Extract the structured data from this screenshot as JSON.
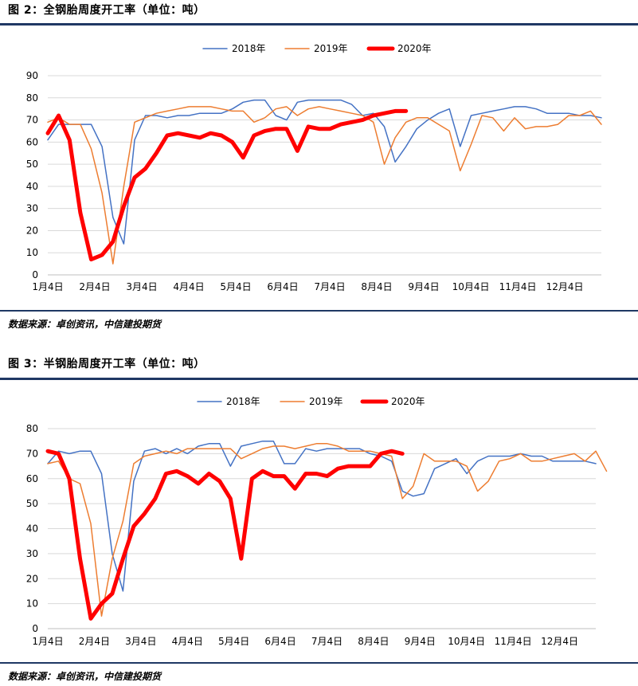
{
  "figures": [
    {
      "title": "图 2：全钢胎周度开工率（单位：吨）",
      "source": "数据来源：卓创资讯，中信建投期货",
      "chart_data": {
        "type": "line",
        "x_tick_labels": [
          "1月4日",
          "2月4日",
          "3月4日",
          "4月4日",
          "5月4日",
          "6月4日",
          "7月4日",
          "8月4日",
          "9月4日",
          "10月4日",
          "11月4日",
          "12月4日"
        ],
        "ylim": [
          0,
          90
        ],
        "y_ticks": [
          0,
          10,
          20,
          30,
          40,
          50,
          60,
          70,
          80,
          90
        ],
        "grid": true,
        "legend_position": "top",
        "series": [
          {
            "name": "2018年",
            "color": "#4472c4",
            "values": [
              61,
              68,
              68,
              68,
              68,
              58,
              26,
              14,
              61,
              72,
              72,
              71,
              72,
              72,
              73,
              73,
              73,
              75,
              78,
              79,
              79,
              72,
              70,
              78,
              79,
              79,
              79,
              79,
              77,
              72,
              73,
              67,
              51,
              58,
              66,
              70,
              73,
              75,
              58,
              72,
              73,
              74,
              75,
              76,
              76,
              75,
              73,
              73,
              73,
              72,
              72,
              71
            ]
          },
          {
            "name": "2019年",
            "color": "#ed7d31",
            "values": [
              69,
              71,
              68,
              68,
              57,
              37,
              5,
              40,
              69,
              71,
              73,
              74,
              75,
              76,
              76,
              76,
              75,
              74,
              74,
              69,
              71,
              75,
              76,
              72,
              75,
              76,
              75,
              74,
              73,
              72,
              69,
              50,
              62,
              69,
              71,
              71,
              68,
              65,
              47,
              59,
              72,
              71,
              65,
              71,
              66,
              67,
              67,
              68,
              72,
              72,
              74,
              68
            ]
          },
          {
            "name": "2020年",
            "color": "#ff0000",
            "values": [
              64,
              72,
              61,
              28,
              7,
              9,
              15,
              31,
              44,
              48,
              55,
              63,
              64,
              63,
              62,
              64,
              63,
              60,
              53,
              63,
              65,
              66,
              66,
              56,
              67,
              66,
              66,
              68,
              69,
              70,
              72,
              73,
              74,
              74
            ]
          }
        ]
      }
    },
    {
      "title": "图 3：半钢胎周度开工率（单位：吨）",
      "source": "数据来源：卓创资讯，中信建投期货",
      "chart_data": {
        "type": "line",
        "x_tick_labels": [
          "1月4日",
          "2月4日",
          "3月4日",
          "4月4日",
          "5月4日",
          "6月4日",
          "7月4日",
          "8月4日",
          "9月4日",
          "10月4日",
          "11月4日",
          "12月4日"
        ],
        "ylim": [
          0,
          80
        ],
        "y_ticks": [
          0,
          10,
          20,
          30,
          40,
          50,
          60,
          70,
          80
        ],
        "grid": true,
        "legend_position": "top",
        "series": [
          {
            "name": "2018年",
            "color": "#4472c4",
            "values": [
              66,
              71,
              70,
              71,
              71,
              62,
              30,
              15,
              59,
              71,
              72,
              70,
              72,
              70,
              73,
              74,
              74,
              65,
              73,
              74,
              75,
              75,
              66,
              66,
              72,
              71,
              72,
              72,
              72,
              72,
              70,
              69,
              67,
              55,
              53,
              54,
              64,
              66,
              68,
              62,
              67,
              69,
              69,
              69,
              70,
              69,
              69,
              67,
              67,
              67,
              67,
              66
            ]
          },
          {
            "name": "2019年",
            "color": "#ed7d31",
            "values": [
              66,
              67,
              60,
              58,
              42,
              5,
              28,
              43,
              66,
              69,
              70,
              71,
              70,
              72,
              72,
              72,
              72,
              72,
              68,
              70,
              72,
              73,
              73,
              72,
              73,
              74,
              74,
              73,
              71,
              71,
              71,
              70,
              69,
              52,
              57,
              70,
              67,
              67,
              67,
              65,
              55,
              59,
              67,
              68,
              70,
              67,
              67,
              68,
              69,
              70,
              67,
              71,
              63
            ]
          },
          {
            "name": "2020年",
            "color": "#ff0000",
            "values": [
              71,
              70,
              60,
              28,
              4,
              10,
              14,
              28,
              41,
              46,
              52,
              62,
              63,
              61,
              58,
              62,
              59,
              52,
              28,
              60,
              63,
              61,
              61,
              56,
              62,
              62,
              61,
              64,
              65,
              65,
              65,
              70,
              71,
              70
            ]
          }
        ]
      }
    }
  ]
}
